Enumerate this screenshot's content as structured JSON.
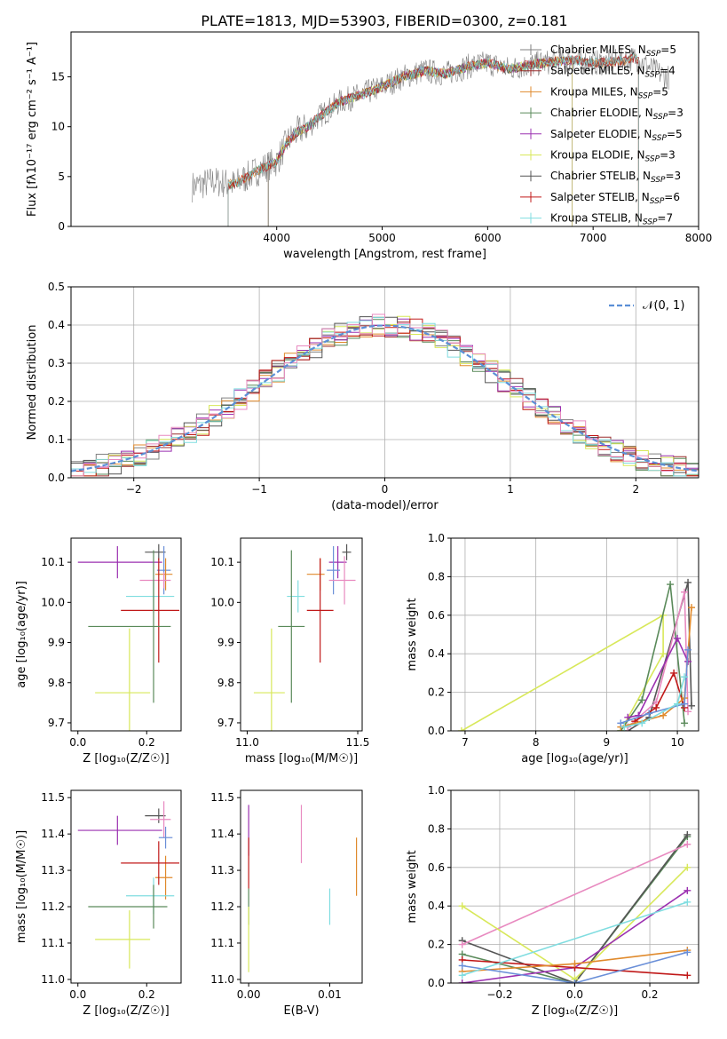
{
  "figure": {
    "title": "PLATE=1813, MJD=53903, FIBERID=0300, z=0.181"
  },
  "colors": [
    "#808080",
    "#9a2c2c",
    "#e08a2c",
    "#5a8a5a",
    "#9b30b0",
    "#d8e85a",
    "#555555",
    "#c01818",
    "#80dde0",
    "#e88ac0",
    "#6a8fd8"
  ],
  "chart_data": [
    {
      "id": "spectrum",
      "type": "line",
      "xlabel": "wavelength [Angstrom, rest frame]",
      "ylabel": "Flux [fλ10⁻¹⁷ erg cm⁻² s⁻¹ A⁻¹]",
      "xlim": [
        2050,
        8000
      ],
      "ylim": [
        0,
        19.5
      ],
      "xticks": [
        4000,
        5000,
        6000,
        7000,
        8000
      ],
      "yticks": [
        0,
        5,
        10,
        15
      ],
      "legend_position": "upper-right",
      "data_x": [
        3200,
        3400,
        3600,
        3800,
        4000,
        4100,
        4200,
        4300,
        4400,
        4600,
        4800,
        5000,
        5200,
        5400,
        5600,
        5800,
        6000,
        6200,
        6400,
        6600,
        6800,
        7000,
        7200,
        7400,
        7600,
        7700
      ],
      "data_y": [
        4.0,
        4.5,
        4.2,
        5.5,
        6.5,
        8.5,
        9.5,
        10.0,
        11.0,
        12.5,
        13.2,
        14.0,
        15.0,
        15.6,
        15.3,
        16.0,
        16.4,
        15.8,
        16.2,
        16.5,
        16.7,
        16.4,
        16.5,
        16.9,
        15.5,
        15.0
      ],
      "model_cut_start": [
        3540,
        3540,
        3540,
        3540,
        3920,
        3920,
        3920,
        3540,
        3540
      ],
      "model_cut_end": [
        7430,
        7430,
        7430,
        6800,
        6800,
        6800,
        7430,
        7430,
        7430
      ],
      "series": [
        {
          "name": "Chabrier MILES, N_SSP=5",
          "color": "#808080"
        },
        {
          "name": "Salpeter MILES, N_SSP=4",
          "color": "#9a2c2c"
        },
        {
          "name": "Kroupa MILES, N_SSP=5",
          "color": "#e08a2c"
        },
        {
          "name": "Chabrier ELODIE, N_SSP=3",
          "color": "#5a8a5a"
        },
        {
          "name": "Salpeter ELODIE, N_SSP=5",
          "color": "#9b30b0"
        },
        {
          "name": "Kroupa ELODIE, N_SSP=3",
          "color": "#d8e85a"
        },
        {
          "name": "Chabrier STELIB, N_SSP=3",
          "color": "#555555"
        },
        {
          "name": "Salpeter STELIB, N_SSP=6",
          "color": "#c01818"
        },
        {
          "name": "Kroupa STELIB, N_SSP=7",
          "color": "#80dde0"
        }
      ]
    },
    {
      "id": "residuals",
      "type": "histogram",
      "xlabel": "(data-model)/error",
      "ylabel": "Normed distribution",
      "xlim": [
        -2.5,
        2.5
      ],
      "ylim": [
        0,
        0.5
      ],
      "xticks": [
        -2,
        -1,
        0,
        1,
        2
      ],
      "yticks": [
        0.0,
        0.1,
        0.2,
        0.3,
        0.4,
        0.5
      ],
      "grid": true,
      "bin_width": 0.1,
      "legend_position": "upper-right",
      "reference_curve": {
        "label": "𝒩(0, 1)",
        "color": "#5b8fd6",
        "mean": 0,
        "sigma": 1
      },
      "series_colors": [
        "#808080",
        "#9a2c2c",
        "#e08a2c",
        "#5a8a5a",
        "#9b30b0",
        "#d8e85a",
        "#555555",
        "#c01818",
        "#80dde0",
        "#e88ac0"
      ]
    },
    {
      "id": "age-vs-z",
      "type": "scatter",
      "xlabel": "Z [log₁₀(Z/Z☉)]",
      "ylabel": "age  [log₁₀(age/yr)]",
      "xlim": [
        -0.02,
        0.3
      ],
      "ylim": [
        9.68,
        10.16
      ],
      "xticks": [
        0.0,
        0.2
      ],
      "yticks": [
        9.7,
        9.8,
        9.9,
        10.0,
        10.1
      ],
      "points": [
        {
          "x": 0.115,
          "y": 10.1,
          "xerr_l": 0.115,
          "xerr_h": 0.13,
          "yerr": 0.04,
          "color": "#9b30b0"
        },
        {
          "x": 0.235,
          "y": 10.125,
          "xerr_l": 0.04,
          "xerr_h": 0.02,
          "yerr": 0.02,
          "color": "#555555"
        },
        {
          "x": 0.25,
          "y": 10.08,
          "xerr_l": 0.02,
          "xerr_h": 0.02,
          "yerr": 0.06,
          "color": "#6a8fd8"
        },
        {
          "x": 0.255,
          "y": 10.07,
          "xerr_l": 0.03,
          "xerr_h": 0.02,
          "yerr": 0.04,
          "color": "#e08a2c"
        },
        {
          "x": 0.25,
          "y": 10.055,
          "xerr_l": 0.07,
          "xerr_h": 0.02,
          "yerr": 0.02,
          "color": "#e88ac0"
        },
        {
          "x": 0.22,
          "y": 10.015,
          "xerr_l": 0.08,
          "xerr_h": 0.06,
          "yerr": 0.04,
          "color": "#80dde0"
        },
        {
          "x": 0.235,
          "y": 9.98,
          "xerr_l": 0.11,
          "xerr_h": 0.06,
          "yerr": 0.13,
          "color": "#c01818"
        },
        {
          "x": 0.22,
          "y": 9.94,
          "xerr_l": 0.19,
          "xerr_h": 0.05,
          "yerr": 0.19,
          "color": "#5a8a5a"
        },
        {
          "x": 0.15,
          "y": 9.775,
          "xerr_l": 0.1,
          "xerr_h": 0.06,
          "yerr": 0.16,
          "color": "#d8e85a"
        }
      ]
    },
    {
      "id": "age-vs-mass",
      "type": "scatter",
      "xlabel": "mass [log₁₀(M/M☉)]",
      "ylabel": "",
      "xlim": [
        10.97,
        11.52
      ],
      "ylim": [
        9.68,
        10.16
      ],
      "xticks": [
        11.0,
        11.5
      ],
      "yticks": [
        9.7,
        9.8,
        9.9,
        10.0,
        10.1
      ],
      "points": [
        {
          "x": 11.41,
          "y": 10.1,
          "xerr_l": 0.04,
          "xerr_h": 0.04,
          "yerr": 0.04,
          "color": "#9b30b0"
        },
        {
          "x": 11.45,
          "y": 10.125,
          "xerr_l": 0.02,
          "xerr_h": 0.02,
          "yerr": 0.02,
          "color": "#555555"
        },
        {
          "x": 11.39,
          "y": 10.08,
          "xerr_l": 0.03,
          "xerr_h": 0.03,
          "yerr": 0.06,
          "color": "#6a8fd8"
        },
        {
          "x": 11.33,
          "y": 10.07,
          "xerr_l": 0.06,
          "xerr_h": 0.02,
          "yerr": 0.04,
          "color": "#e08a2c"
        },
        {
          "x": 11.44,
          "y": 10.055,
          "xerr_l": 0.07,
          "xerr_h": 0.05,
          "yerr": 0.06,
          "color": "#e88ac0"
        },
        {
          "x": 11.23,
          "y": 10.015,
          "xerr_l": 0.05,
          "xerr_h": 0.03,
          "yerr": 0.04,
          "color": "#80dde0"
        },
        {
          "x": 11.33,
          "y": 9.98,
          "xerr_l": 0.06,
          "xerr_h": 0.06,
          "yerr": 0.13,
          "color": "#c01818"
        },
        {
          "x": 11.2,
          "y": 9.94,
          "xerr_l": 0.06,
          "xerr_h": 0.06,
          "yerr": 0.19,
          "color": "#5a8a5a"
        },
        {
          "x": 11.11,
          "y": 9.775,
          "xerr_l": 0.08,
          "xerr_h": 0.06,
          "yerr": 0.16,
          "color": "#d8e85a"
        }
      ]
    },
    {
      "id": "massweight-vs-age",
      "type": "line",
      "xlabel": "age  [log₁₀(age/yr)]",
      "ylabel": "mass weight",
      "xlim": [
        6.8,
        10.3
      ],
      "ylim": [
        0,
        1.0
      ],
      "xticks": [
        7,
        8,
        9,
        10
      ],
      "yticks": [
        0.0,
        0.2,
        0.4,
        0.6,
        0.8,
        1.0
      ],
      "grid": true,
      "series": [
        {
          "color": "#d8e85a",
          "x": [
            6.95,
            9.8,
            9.8,
            9.2
          ],
          "y": [
            0.0,
            0.6,
            0.4,
            0.0
          ]
        },
        {
          "color": "#5a8a5a",
          "x": [
            9.2,
            9.5,
            9.9,
            10.1
          ],
          "y": [
            0.0,
            0.16,
            0.76,
            0.04
          ]
        },
        {
          "color": "#555555",
          "x": [
            9.3,
            9.6,
            10.15,
            10.2
          ],
          "y": [
            0.0,
            0.07,
            0.77,
            0.13
          ]
        },
        {
          "color": "#e88ac0",
          "x": [
            9.3,
            9.7,
            10.1,
            10.15
          ],
          "y": [
            0.02,
            0.15,
            0.72,
            0.1
          ]
        },
        {
          "color": "#9b30b0",
          "x": [
            9.3,
            9.45,
            10.0,
            10.15
          ],
          "y": [
            0.07,
            0.08,
            0.48,
            0.36
          ]
        },
        {
          "color": "#c01818",
          "x": [
            9.4,
            9.7,
            9.95,
            10.1
          ],
          "y": [
            0.05,
            0.12,
            0.3,
            0.12
          ]
        },
        {
          "color": "#e08a2c",
          "x": [
            9.2,
            9.8,
            10.1,
            10.2
          ],
          "y": [
            0.02,
            0.08,
            0.17,
            0.64
          ]
        },
        {
          "color": "#6a8fd8",
          "x": [
            9.2,
            9.6,
            10.1,
            10.15
          ],
          "y": [
            0.04,
            0.09,
            0.14,
            0.42
          ]
        },
        {
          "color": "#80dde0",
          "x": [
            9.25,
            9.5,
            10.0,
            10.1
          ],
          "y": [
            0.02,
            0.04,
            0.14,
            0.28
          ]
        }
      ]
    },
    {
      "id": "mass-vs-z",
      "type": "scatter",
      "xlabel": "Z [log₁₀(Z/Z☉)]",
      "ylabel": "mass [log₁₀(M/M☉)]",
      "xlim": [
        -0.02,
        0.3
      ],
      "ylim": [
        10.99,
        11.52
      ],
      "xticks": [
        0.0,
        0.2
      ],
      "yticks": [
        11.0,
        11.1,
        11.2,
        11.3,
        11.4,
        11.5
      ],
      "points": [
        {
          "x": 0.115,
          "y": 11.41,
          "xerr_l": 0.115,
          "xerr_h": 0.13,
          "yerr": 0.04,
          "color": "#9b30b0"
        },
        {
          "x": 0.235,
          "y": 11.45,
          "xerr_l": 0.04,
          "xerr_h": 0.02,
          "yerr": 0.02,
          "color": "#555555"
        },
        {
          "x": 0.25,
          "y": 11.44,
          "xerr_l": 0.04,
          "xerr_h": 0.02,
          "yerr": 0.05,
          "color": "#e88ac0"
        },
        {
          "x": 0.255,
          "y": 11.39,
          "xerr_l": 0.02,
          "xerr_h": 0.02,
          "yerr": 0.03,
          "color": "#6a8fd8"
        },
        {
          "x": 0.255,
          "y": 11.28,
          "xerr_l": 0.03,
          "xerr_h": 0.02,
          "yerr": 0.06,
          "color": "#e08a2c"
        },
        {
          "x": 0.235,
          "y": 11.32,
          "xerr_l": 0.11,
          "xerr_h": 0.06,
          "yerr": 0.06,
          "color": "#c01818"
        },
        {
          "x": 0.22,
          "y": 11.23,
          "xerr_l": 0.08,
          "xerr_h": 0.06,
          "yerr": 0.05,
          "color": "#80dde0"
        },
        {
          "x": 0.22,
          "y": 11.2,
          "xerr_l": 0.19,
          "xerr_h": 0.04,
          "yerr": 0.06,
          "color": "#5a8a5a"
        },
        {
          "x": 0.15,
          "y": 11.11,
          "xerr_l": 0.1,
          "xerr_h": 0.06,
          "yerr": 0.08,
          "color": "#d8e85a"
        }
      ]
    },
    {
      "id": "mass-vs-ebv",
      "type": "scatter",
      "xlabel": "E(B-V)",
      "ylabel": "",
      "xlim": [
        -0.001,
        0.014
      ],
      "ylim": [
        10.99,
        11.52
      ],
      "xticks": [
        0.0,
        0.01
      ],
      "yticks": [
        11.0,
        11.1,
        11.2,
        11.3,
        11.4,
        11.5
      ],
      "points": [
        {
          "x": 0.0,
          "y": 11.41,
          "xerr_l": 0,
          "xerr_h": 0,
          "yerr": 0.07,
          "color": "#9b30b0"
        },
        {
          "x": 0.0,
          "y": 11.32,
          "xerr_l": 0,
          "xerr_h": 0,
          "yerr": 0.07,
          "color": "#c01818"
        },
        {
          "x": 0.0,
          "y": 11.2,
          "xerr_l": 0,
          "xerr_h": 0,
          "yerr": 0.05,
          "color": "#5a8a5a"
        },
        {
          "x": 0.0,
          "y": 11.11,
          "xerr_l": 0,
          "xerr_h": 0,
          "yerr": 0.09,
          "color": "#d8e85a"
        },
        {
          "x": 0.0065,
          "y": 11.4,
          "xerr_l": 0,
          "xerr_h": 0,
          "yerr": 0.08,
          "color": "#e88ac0"
        },
        {
          "x": 0.0133,
          "y": 11.31,
          "xerr_l": 0,
          "xerr_h": 0,
          "yerr": 0.08,
          "color": "#e08a2c"
        },
        {
          "x": 0.01,
          "y": 11.2,
          "xerr_l": 0,
          "xerr_h": 0,
          "yerr": 0.05,
          "color": "#80dde0"
        }
      ]
    },
    {
      "id": "massweight-vs-z",
      "type": "line",
      "xlabel": "Z [log₁₀(Z/Z☉)]",
      "ylabel": "mass weight",
      "xlim": [
        -0.33,
        0.33
      ],
      "ylim": [
        0,
        1.0
      ],
      "xticks": [
        -0.2,
        0.0,
        0.2
      ],
      "yticks": [
        0.0,
        0.2,
        0.4,
        0.6,
        0.8,
        1.0
      ],
      "grid": true,
      "series": [
        {
          "color": "#5a8a5a",
          "x": [
            -0.3,
            0.0,
            0.3
          ],
          "y": [
            0.15,
            0.0,
            0.76
          ]
        },
        {
          "color": "#555555",
          "x": [
            -0.3,
            0.0,
            0.3
          ],
          "y": [
            0.22,
            0.0,
            0.77
          ]
        },
        {
          "color": "#e88ac0",
          "x": [
            -0.3,
            0.3
          ],
          "y": [
            0.2,
            0.72
          ]
        },
        {
          "color": "#d8e85a",
          "x": [
            -0.3,
            0.0,
            0.3
          ],
          "y": [
            0.4,
            0.02,
            0.6
          ]
        },
        {
          "color": "#9b30b0",
          "x": [
            -0.3,
            0.0,
            0.3
          ],
          "y": [
            0.0,
            0.08,
            0.48
          ]
        },
        {
          "color": "#c01818",
          "x": [
            -0.3,
            0.0,
            0.3
          ],
          "y": [
            0.12,
            0.08,
            0.04
          ]
        },
        {
          "color": "#e08a2c",
          "x": [
            -0.3,
            0.0,
            0.3
          ],
          "y": [
            0.06,
            0.1,
            0.17
          ]
        },
        {
          "color": "#6a8fd8",
          "x": [
            -0.3,
            0.0,
            0.3
          ],
          "y": [
            0.09,
            0.0,
            0.16
          ]
        },
        {
          "color": "#80dde0",
          "x": [
            -0.3,
            0.3
          ],
          "y": [
            0.04,
            0.42
          ]
        }
      ]
    }
  ]
}
